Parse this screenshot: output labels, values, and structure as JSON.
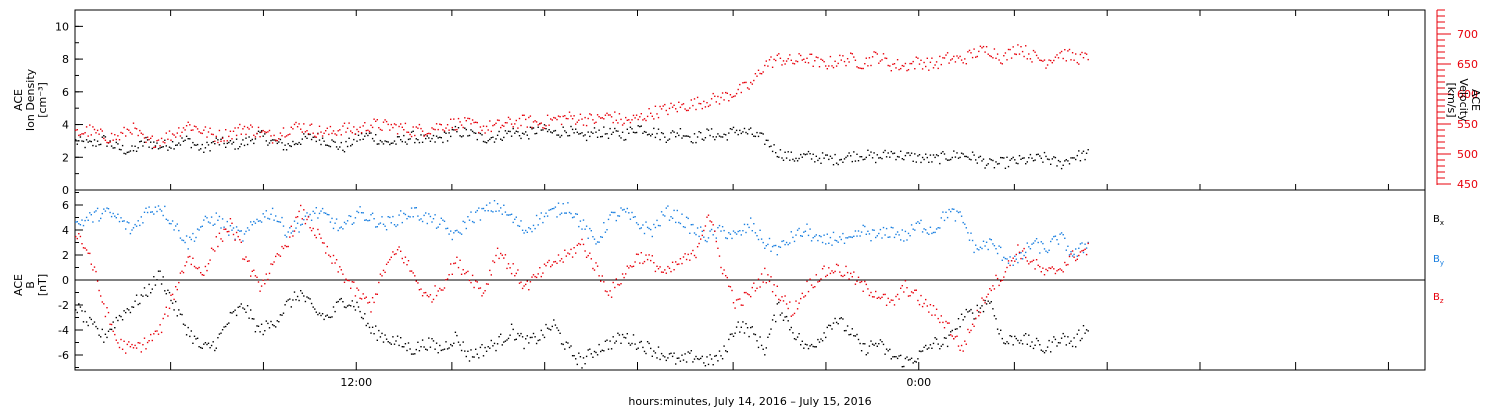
{
  "page": {
    "xlabel": "hours:minutes, July 14, 2016 – July 15, 2016"
  },
  "chart_data": [
    {
      "type": "scatter",
      "panel": "top",
      "ylabel_left": [
        "ACE",
        "Ion Density",
        "[cm⁻³]"
      ],
      "ylabel_right": [
        "ACE",
        "Velocity",
        "[km/s]"
      ],
      "ylim_left": [
        0,
        11
      ],
      "ylim_right": [
        440,
        740
      ],
      "yticks_left": [
        0,
        2,
        4,
        6,
        8,
        10
      ],
      "yticks_right": [
        450,
        500,
        550,
        600,
        650,
        700
      ],
      "series": [
        {
          "axis": "left",
          "color": "#000000",
          "x": [
            0.0,
            0.5,
            1.0,
            1.5,
            2.0,
            2.5,
            3.0,
            3.5,
            4.0,
            4.5,
            5.0,
            5.5,
            6.0,
            6.5,
            7.0,
            7.5,
            8.0,
            8.5,
            9.0,
            9.5,
            10.0,
            10.5,
            11.0,
            11.5,
            12.0,
            12.5,
            13.0,
            13.5,
            14.0,
            14.5,
            15.0,
            15.5,
            16.0,
            16.5,
            17.0,
            17.5,
            18.0,
            18.5,
            19.0,
            19.5,
            20.0,
            20.5,
            21.0,
            21.5,
            22.0,
            22.5,
            23.0,
            23.5,
            24.0,
            24.5,
            25.0,
            25.5,
            26.0,
            26.5,
            27.0,
            27.5,
            28.0,
            28.5,
            29.0,
            29.5,
            30.0,
            30.5,
            31.0,
            31.5,
            32.0,
            32.5,
            33.0,
            33.5,
            34.0,
            34.5,
            35.0,
            35.5,
            36.0
          ],
          "values": [
            3.0,
            2.8,
            3.1,
            2.6,
            2.4,
            3.0,
            2.7,
            2.9,
            3.1,
            2.5,
            3.0,
            2.8,
            2.9,
            3.4,
            3.0,
            2.7,
            3.1,
            3.3,
            3.0,
            2.6,
            3.2,
            3.4,
            2.9,
            3.0,
            3.3,
            3.0,
            3.2,
            3.6,
            3.5,
            3.2,
            3.3,
            3.6,
            3.4,
            3.8,
            3.5,
            3.7,
            3.2,
            3.6,
            3.5,
            3.4,
            3.9,
            3.6,
            3.3,
            3.6,
            3.2,
            3.5,
            3.3,
            3.7,
            3.5,
            3.1,
            2.3,
            2.0,
            2.1,
            2.0,
            1.9,
            2.1,
            2.2,
            2.0,
            2.3,
            2.1,
            2.0,
            1.9,
            2.1,
            2.2,
            2.0,
            1.6,
            1.7,
            1.8,
            1.9,
            2.0,
            1.6,
            2.1,
            2.2
          ]
        },
        {
          "axis": "right",
          "color": "#e8000b",
          "x": [
            0.0,
            0.5,
            1.0,
            1.5,
            2.0,
            2.5,
            3.0,
            3.5,
            4.0,
            4.5,
            5.0,
            5.5,
            6.0,
            6.5,
            7.0,
            7.5,
            8.0,
            8.5,
            9.0,
            9.5,
            10.0,
            10.5,
            11.0,
            11.5,
            12.0,
            12.5,
            13.0,
            13.5,
            14.0,
            14.5,
            15.0,
            15.5,
            16.0,
            16.5,
            17.0,
            17.5,
            18.0,
            18.5,
            19.0,
            19.5,
            20.0,
            20.5,
            21.0,
            21.5,
            22.0,
            22.5,
            23.0,
            23.5,
            24.0,
            24.5,
            25.0,
            25.5,
            26.0,
            26.5,
            27.0,
            27.5,
            28.0,
            28.5,
            29.0,
            29.5,
            30.0,
            30.5,
            31.0,
            31.5,
            32.0,
            32.5,
            33.0,
            33.5,
            34.0,
            34.5,
            35.0,
            35.5,
            36.0
          ],
          "values": [
            535,
            540,
            530,
            528,
            545,
            520,
            525,
            535,
            550,
            540,
            530,
            535,
            545,
            538,
            530,
            542,
            548,
            540,
            536,
            544,
            540,
            550,
            548,
            545,
            540,
            542,
            548,
            552,
            550,
            545,
            548,
            553,
            556,
            552,
            558,
            562,
            560,
            558,
            565,
            555,
            560,
            570,
            575,
            580,
            585,
            590,
            595,
            605,
            615,
            650,
            660,
            655,
            662,
            650,
            655,
            660,
            652,
            665,
            650,
            648,
            655,
            650,
            660,
            658,
            670,
            675,
            660,
            680,
            665,
            655,
            670,
            662,
            660
          ]
        }
      ]
    },
    {
      "type": "scatter",
      "panel": "bottom",
      "ylabel_left": [
        "ACE",
        "B",
        "[nT]"
      ],
      "ylim": [
        -7.2,
        7.2
      ],
      "yticks": [
        -6,
        -4,
        -2,
        0,
        2,
        4,
        6
      ],
      "zero_line": true,
      "legend": [
        {
          "base": "B",
          "sub": "x",
          "color": "#000000"
        },
        {
          "base": "B",
          "sub": "y",
          "color": "#1a7fe0"
        },
        {
          "base": "B",
          "sub": "z",
          "color": "#e8000b"
        }
      ],
      "series": [
        {
          "name": "Bx",
          "color": "#000000",
          "x": [
            0.0,
            0.5,
            1.0,
            1.5,
            2.0,
            2.5,
            3.0,
            3.5,
            4.0,
            4.5,
            5.0,
            5.5,
            6.0,
            6.5,
            7.0,
            7.5,
            8.0,
            8.5,
            9.0,
            9.5,
            10.0,
            10.5,
            11.0,
            11.5,
            12.0,
            12.5,
            13.0,
            13.5,
            14.0,
            14.5,
            15.0,
            15.5,
            16.0,
            16.5,
            17.0,
            17.5,
            18.0,
            18.5,
            19.0,
            19.5,
            20.0,
            20.5,
            21.0,
            21.5,
            22.0,
            22.5,
            23.0,
            23.5,
            24.0,
            24.5,
            25.0,
            25.5,
            26.0,
            26.5,
            27.0,
            27.5,
            28.0,
            28.5,
            29.0,
            29.5,
            30.0,
            30.5,
            31.0,
            31.5,
            32.0,
            32.5,
            33.0,
            33.5,
            34.0,
            34.5,
            35.0,
            35.5,
            36.0
          ],
          "values": [
            -2.0,
            -3.5,
            -4.5,
            -3.0,
            -2.0,
            -1.0,
            0.5,
            -2.0,
            -4.0,
            -5.5,
            -5.0,
            -3.0,
            -2.0,
            -4.0,
            -3.5,
            -2.0,
            -1.0,
            -2.5,
            -3.0,
            -1.5,
            -2.0,
            -4.0,
            -4.5,
            -5.0,
            -5.5,
            -5.0,
            -5.5,
            -4.5,
            -6.0,
            -5.5,
            -5.0,
            -4.0,
            -5.0,
            -4.5,
            -3.5,
            -5.5,
            -6.5,
            -5.5,
            -5.0,
            -4.5,
            -5.0,
            -5.5,
            -6.0,
            -6.5,
            -6.0,
            -6.5,
            -6.0,
            -3.5,
            -4.0,
            -5.5,
            -2.0,
            -4.0,
            -5.5,
            -4.5,
            -3.0,
            -4.0,
            -5.5,
            -5.0,
            -6.0,
            -6.5,
            -6.0,
            -5.0,
            -5.0,
            -3.0,
            -2.5,
            -1.5,
            -5.0,
            -4.5,
            -5.0,
            -5.5,
            -4.5,
            -5.0,
            -3.5
          ]
        },
        {
          "name": "By",
          "color": "#1a7fe0",
          "x": [
            0.0,
            0.5,
            1.0,
            1.5,
            2.0,
            2.5,
            3.0,
            3.5,
            4.0,
            4.5,
            5.0,
            5.5,
            6.0,
            6.5,
            7.0,
            7.5,
            8.0,
            8.5,
            9.0,
            9.5,
            10.0,
            10.5,
            11.0,
            11.5,
            12.0,
            12.5,
            13.0,
            13.5,
            14.0,
            14.5,
            15.0,
            15.5,
            16.0,
            16.5,
            17.0,
            17.5,
            18.0,
            18.5,
            19.0,
            19.5,
            20.0,
            20.5,
            21.0,
            21.5,
            22.0,
            22.5,
            23.0,
            23.5,
            24.0,
            24.5,
            25.0,
            25.5,
            26.0,
            26.5,
            27.0,
            27.5,
            28.0,
            28.5,
            29.0,
            29.5,
            30.0,
            30.5,
            31.0,
            31.5,
            32.0,
            32.5,
            33.0,
            33.5,
            34.0,
            34.5,
            35.0,
            35.5,
            36.0
          ],
          "values": [
            4.5,
            5.0,
            5.5,
            5.0,
            4.0,
            5.5,
            6.0,
            4.5,
            3.0,
            4.5,
            5.0,
            4.0,
            3.5,
            5.0,
            5.5,
            4.0,
            4.5,
            5.5,
            5.0,
            4.0,
            5.5,
            5.0,
            4.5,
            5.0,
            5.5,
            5.0,
            4.5,
            3.5,
            5.0,
            5.5,
            6.0,
            5.0,
            4.0,
            5.0,
            5.5,
            6.0,
            4.5,
            3.0,
            5.0,
            5.5,
            4.5,
            4.0,
            5.5,
            5.0,
            4.0,
            3.5,
            4.0,
            3.5,
            4.5,
            3.0,
            2.5,
            3.5,
            4.0,
            3.0,
            3.5,
            3.0,
            4.0,
            3.5,
            4.0,
            3.5,
            4.5,
            4.0,
            5.5,
            5.0,
            2.5,
            3.0,
            2.0,
            1.5,
            3.0,
            2.5,
            3.5,
            2.0,
            3.0
          ]
        },
        {
          "name": "Bz",
          "color": "#e8000b",
          "x": [
            0.0,
            0.5,
            1.0,
            1.5,
            2.0,
            2.5,
            3.0,
            3.5,
            4.0,
            4.5,
            5.0,
            5.5,
            6.0,
            6.5,
            7.0,
            7.5,
            8.0,
            8.5,
            9.0,
            9.5,
            10.0,
            10.5,
            11.0,
            11.5,
            12.0,
            12.5,
            13.0,
            13.5,
            14.0,
            14.5,
            15.0,
            15.5,
            16.0,
            16.5,
            17.0,
            17.5,
            18.0,
            18.5,
            19.0,
            19.5,
            20.0,
            20.5,
            21.0,
            21.5,
            22.0,
            22.5,
            23.0,
            23.5,
            24.0,
            24.5,
            25.0,
            25.5,
            26.0,
            26.5,
            27.0,
            27.5,
            28.0,
            28.5,
            29.0,
            29.5,
            30.0,
            30.5,
            31.0,
            31.5,
            32.0,
            32.5,
            33.0,
            33.5,
            34.0,
            34.5,
            35.0,
            35.5,
            36.0
          ],
          "values": [
            4.0,
            2.0,
            -2.0,
            -5.0,
            -5.5,
            -5.0,
            -4.0,
            -1.0,
            2.0,
            0.5,
            3.0,
            4.5,
            2.0,
            -0.5,
            1.0,
            3.0,
            5.5,
            4.0,
            2.0,
            0.5,
            -1.0,
            -2.0,
            1.0,
            2.5,
            0.5,
            -1.5,
            -0.5,
            1.5,
            0.5,
            -1.0,
            2.5,
            1.0,
            -0.5,
            0.5,
            1.5,
            2.0,
            3.0,
            1.0,
            -1.0,
            0.5,
            2.0,
            1.5,
            0.5,
            1.5,
            2.0,
            5.5,
            1.0,
            -2.0,
            -1.0,
            0.5,
            -1.0,
            -2.5,
            -0.5,
            0.5,
            1.0,
            0.5,
            -0.5,
            -1.0,
            -2.0,
            -0.5,
            -1.5,
            -2.5,
            -3.5,
            -5.5,
            -3.0,
            -0.5,
            0.5,
            2.5,
            1.5,
            0.5,
            1.0,
            2.0,
            2.5
          ]
        }
      ]
    }
  ],
  "x_axis": {
    "xlim": [
      0,
      48
    ],
    "tick_labels": [
      {
        "x": 10,
        "label": "12:00"
      },
      {
        "x": 30,
        "label": "0:00"
      }
    ],
    "minor_ticks": [
      3.4,
      6.7,
      10,
      13.4,
      16.7,
      20,
      23.4,
      26.7,
      30,
      33.4,
      36.7,
      40,
      43.4,
      46.7
    ]
  }
}
